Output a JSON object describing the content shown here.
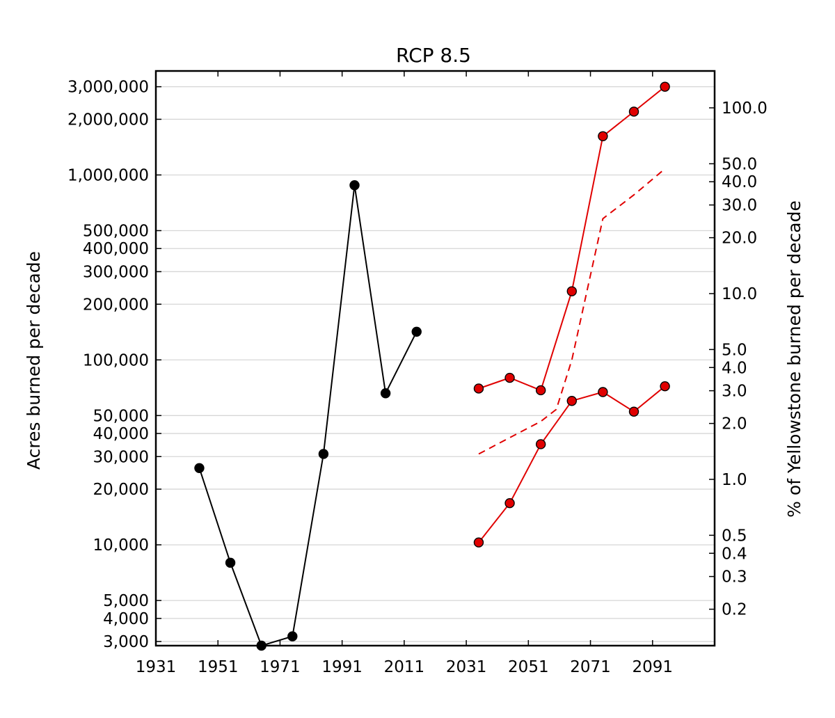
{
  "chart_data": {
    "type": "line",
    "title": "RCP 8.5",
    "ylabel_left": "Acres burned per decade",
    "ylabel_right": "% of Yellowstone burned per decade",
    "xlim": [
      1931,
      2111
    ],
    "ylim_left": [
      2850,
      3650000
    ],
    "y_scale": "log",
    "grid": "horizontal",
    "x_ticks": [
      1931,
      1951,
      1971,
      1991,
      2011,
      2031,
      2051,
      2071,
      2091
    ],
    "x_tick_labels": [
      "1931",
      "1951",
      "1971",
      "1991",
      "2011",
      "2031",
      "2051",
      "2071",
      "2091"
    ],
    "y_ticks_left": [
      3000,
      4000,
      5000,
      10000,
      20000,
      30000,
      40000,
      50000,
      100000,
      200000,
      300000,
      400000,
      500000,
      1000000,
      2000000,
      3000000
    ],
    "y_tick_labels_left": [
      "3,000",
      "4,000",
      "5,000",
      "10,000",
      "20,000",
      "30,000",
      "40,000",
      "50,000",
      "100,000",
      "200,000",
      "300,000",
      "400,000",
      "500,000",
      "1,000,000",
      "2,000,000",
      "3,000,000"
    ],
    "y_ticks_right": [
      0.2,
      0.3,
      0.4,
      0.5,
      1.0,
      2.0,
      3.0,
      4.0,
      5.0,
      10.0,
      20.0,
      30.0,
      40.0,
      50.0,
      100.0
    ],
    "y_tick_labels_right": [
      "0.2",
      "0.3",
      "0.4",
      "0.5",
      "1.0",
      "2.0",
      "3.0",
      "4.0",
      "5.0",
      "10.0",
      "20.0",
      "30.0",
      "40.0",
      "50.0",
      "100.0"
    ],
    "series": [
      {
        "color": "#000000",
        "style": "solid",
        "markers": true,
        "x": [
          1945,
          1955,
          1965,
          1975,
          1985,
          1995,
          2005,
          2015
        ],
        "y": [
          26000,
          8000,
          2850,
          3200,
          31000,
          880000,
          66000,
          142000
        ]
      },
      {
        "color": "#e00000",
        "style": "solid",
        "markers": true,
        "x": [
          2035,
          2045,
          2055,
          2065,
          2075,
          2085,
          2095
        ],
        "y": [
          10300,
          16800,
          35000,
          60000,
          67000,
          52500,
          72000
        ]
      },
      {
        "color": "#e00000",
        "style": "solid",
        "markers": true,
        "x": [
          2035,
          2045,
          2055,
          2065,
          2075,
          2085,
          2095
        ],
        "y": [
          70000,
          80000,
          68500,
          235000,
          1620000,
          2200000,
          3000000
        ]
      },
      {
        "color": "#e00000",
        "style": "dashed",
        "markers": false,
        "x": [
          2035,
          2045,
          2055,
          2060,
          2065,
          2075,
          2085,
          2095
        ],
        "y": [
          31000,
          38000,
          46500,
          54000,
          100000,
          580000,
          780000,
          1080000
        ]
      }
    ]
  }
}
